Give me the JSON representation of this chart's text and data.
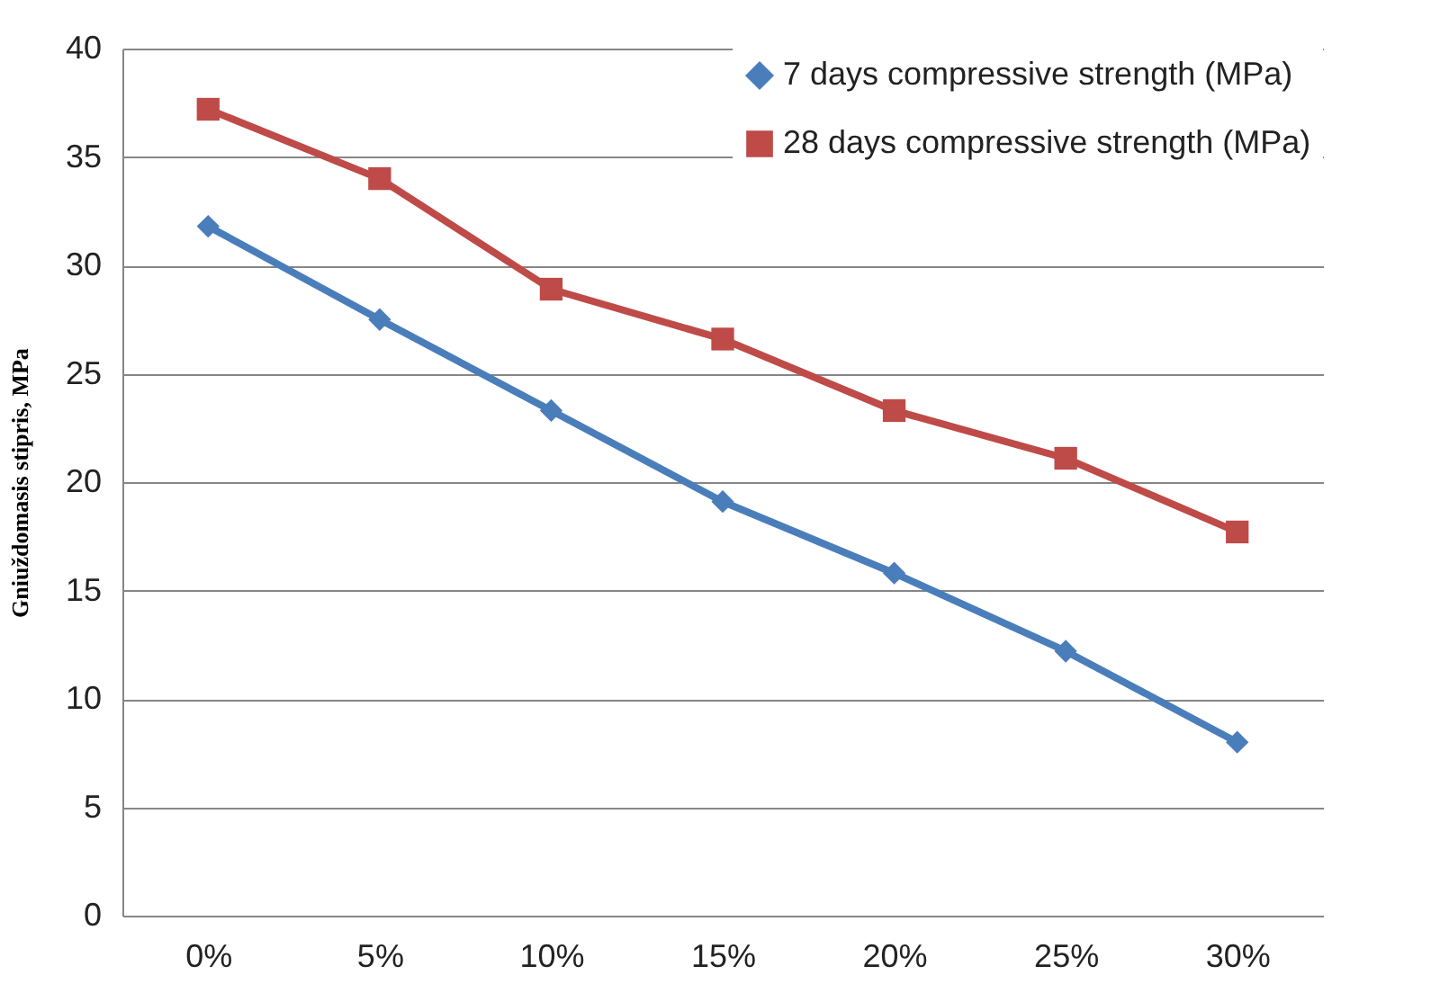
{
  "chart_data": {
    "type": "line",
    "ylabel": "Gniuždomasis stipris, MPa",
    "categories": [
      "0%",
      "5%",
      "10%",
      "15%",
      "20%",
      "25%",
      "30%"
    ],
    "series": [
      {
        "name": "7 days compressive strength (MPa)",
        "color": "#4a7ebb",
        "marker": "diamond",
        "values": [
          31.8,
          27.5,
          23.3,
          19.1,
          15.8,
          12.2,
          8.0
        ]
      },
      {
        "name": "28 days compressive strength (MPa)",
        "color": "#be4b48",
        "marker": "square",
        "values": [
          37.2,
          34.0,
          28.9,
          26.6,
          23.3,
          21.1,
          17.7
        ]
      }
    ],
    "ylim": [
      0,
      40
    ],
    "yticks": [
      0,
      5,
      10,
      15,
      20,
      25,
      30,
      35,
      40
    ],
    "grid": "y",
    "legend": "top right",
    "line_style": "solid"
  }
}
